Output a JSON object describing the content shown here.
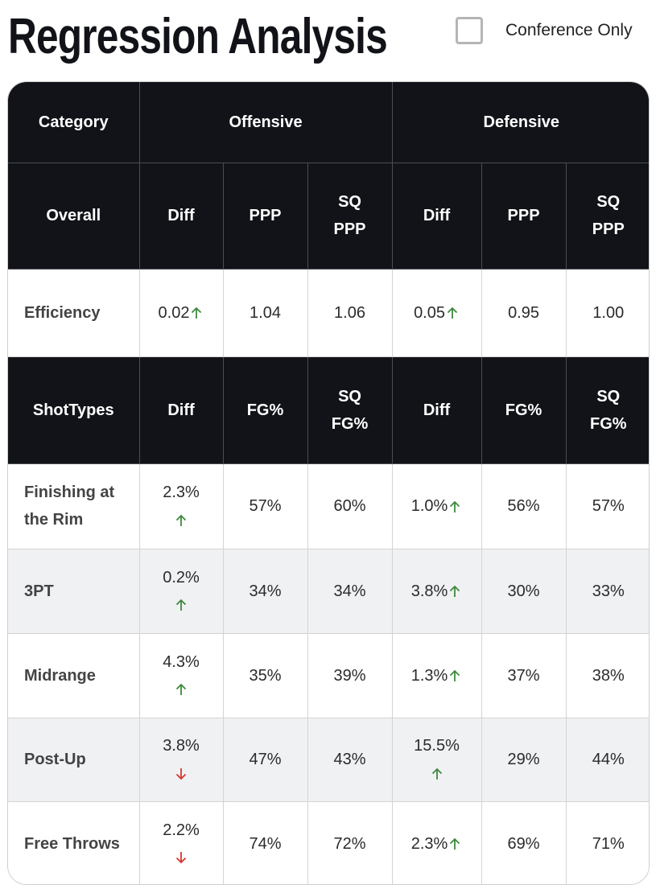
{
  "header": {
    "title": "Regression Analysis",
    "filter_label": "Conference Only",
    "filter_checked": false
  },
  "table": {
    "group_header": [
      "Category",
      "Offensive",
      "Defensive"
    ],
    "sections": [
      {
        "header": [
          "Overall",
          "Diff",
          "PPP",
          "SQ PPP",
          "Diff",
          "PPP",
          "SQ PPP"
        ],
        "rows": [
          {
            "label": "Efficiency",
            "cells": [
              {
                "text": "0.02",
                "trend": "up"
              },
              {
                "text": "1.04"
              },
              {
                "text": "1.06"
              },
              {
                "text": "0.05",
                "trend": "up"
              },
              {
                "text": "0.95"
              },
              {
                "text": "1.00"
              }
            ]
          }
        ]
      },
      {
        "header": [
          "ShotTypes",
          "Diff",
          "FG%",
          "SQ FG%",
          "Diff",
          "FG%",
          "SQ FG%"
        ],
        "rows": [
          {
            "label": "Finishing at the Rim",
            "cells": [
              {
                "text": "2.3%",
                "trend": "up"
              },
              {
                "text": "57%"
              },
              {
                "text": "60%"
              },
              {
                "text": "1.0%",
                "trend": "up"
              },
              {
                "text": "56%"
              },
              {
                "text": "57%"
              }
            ]
          },
          {
            "label": "3PT",
            "cells": [
              {
                "text": "0.2%",
                "trend": "up"
              },
              {
                "text": "34%"
              },
              {
                "text": "34%"
              },
              {
                "text": "3.8%",
                "trend": "up"
              },
              {
                "text": "30%"
              },
              {
                "text": "33%"
              }
            ]
          },
          {
            "label": "Midrange",
            "cells": [
              {
                "text": "4.3%",
                "trend": "up"
              },
              {
                "text": "35%"
              },
              {
                "text": "39%"
              },
              {
                "text": "1.3%",
                "trend": "up"
              },
              {
                "text": "37%"
              },
              {
                "text": "38%"
              }
            ]
          },
          {
            "label": "Post-Up",
            "cells": [
              {
                "text": "3.8%",
                "trend": "down"
              },
              {
                "text": "47%"
              },
              {
                "text": "43%"
              },
              {
                "text": "15.5%",
                "trend": "up"
              },
              {
                "text": "29%"
              },
              {
                "text": "44%"
              }
            ]
          },
          {
            "label": "Free Throws",
            "cells": [
              {
                "text": "2.2%",
                "trend": "down"
              },
              {
                "text": "74%"
              },
              {
                "text": "72%"
              },
              {
                "text": "2.3%",
                "trend": "up"
              },
              {
                "text": "69%"
              },
              {
                "text": "71%"
              }
            ]
          }
        ]
      }
    ]
  }
}
